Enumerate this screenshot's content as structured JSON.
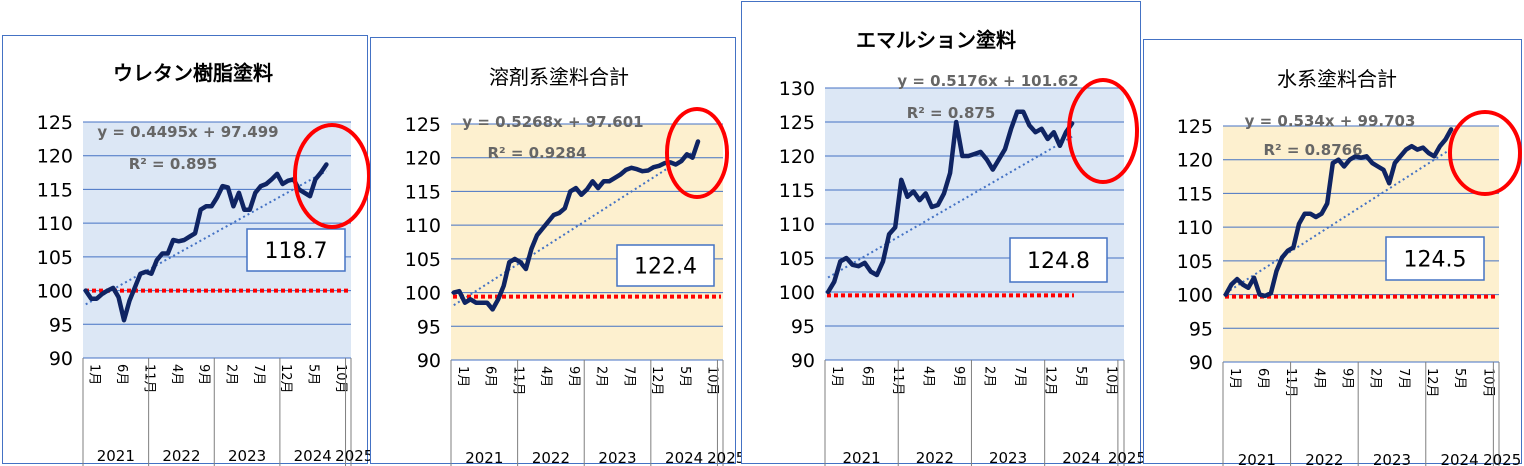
{
  "colors": {
    "line": "#0f2463",
    "trend": "#4472c4",
    "baseline": "#ff0000",
    "bg_blue": "#dce7f5",
    "bg_yellow": "#fdf0cf",
    "grid": "#4472c4",
    "circle": "#ff0000",
    "border": "#4472c4"
  },
  "chart_data": [
    {
      "type": "line",
      "title": "ウレタン樹脂塗料",
      "background": "blue",
      "ylim": [
        90,
        125
      ],
      "yticks": [
        "125",
        "120",
        "115",
        "110",
        "105",
        "100",
        "95",
        "90"
      ],
      "month_labels": [
        "1月",
        "6月",
        "11月",
        "4月",
        "9月",
        "2月",
        "7月",
        "12月",
        "5月",
        "10月"
      ],
      "year_labels": [
        "2021",
        "2022",
        "2023",
        "2024",
        "2025"
      ],
      "equation": "y = 0.4495x + 97.499",
      "r2": "R² = 0.895",
      "latest_value": "118.7",
      "baseline": 100,
      "trend": {
        "slope": 0.4495,
        "intercept": 97.499
      },
      "values": [
        100.0,
        98.8,
        98.8,
        99.5,
        100.0,
        100.4,
        99.0,
        95.6,
        98.5,
        100.5,
        102.5,
        102.8,
        102.5,
        104.5,
        105.5,
        105.5,
        107.5,
        107.3,
        107.5,
        108.0,
        108.5,
        112.0,
        112.5,
        112.5,
        113.8,
        115.5,
        115.3,
        112.5,
        114.5,
        112.0,
        112.0,
        114.5,
        115.5,
        115.8,
        116.5,
        117.3,
        115.8,
        116.3,
        116.5,
        115.0,
        114.5,
        114.0,
        116.5,
        117.5,
        118.7
      ]
    },
    {
      "type": "line",
      "title": "溶剤系塗料合計",
      "background": "yellow",
      "ylim": [
        90,
        125
      ],
      "yticks": [
        "125",
        "120",
        "115",
        "110",
        "105",
        "100",
        "95",
        "90"
      ],
      "month_labels": [
        "1月",
        "6月",
        "11月",
        "4月",
        "9月",
        "2月",
        "7月",
        "12月",
        "5月",
        "10月"
      ],
      "year_labels": [
        "2021",
        "2022",
        "2023",
        "2024",
        "2025"
      ],
      "equation": "y = 0.5268x + 97.601",
      "r2": "R² = 0.9284",
      "latest_value": "122.4",
      "baseline": 99.4,
      "trend": {
        "slope": 0.5268,
        "intercept": 97.601
      },
      "values": [
        100.0,
        100.2,
        98.5,
        99.0,
        98.5,
        98.5,
        98.5,
        97.5,
        99.0,
        101.0,
        104.5,
        105.0,
        104.5,
        103.5,
        106.5,
        108.5,
        109.5,
        110.5,
        111.5,
        111.8,
        112.5,
        115.0,
        115.5,
        114.5,
        115.3,
        116.5,
        115.5,
        116.5,
        116.5,
        117.0,
        117.5,
        118.2,
        118.5,
        118.3,
        118.0,
        118.1,
        118.6,
        118.8,
        119.2,
        119.3,
        119.0,
        119.5,
        120.5,
        120.0,
        122.4
      ]
    },
    {
      "type": "line",
      "title": "エマルション塗料",
      "background": "blue",
      "ylim": [
        90,
        130
      ],
      "yticks": [
        "130",
        "125",
        "120",
        "115",
        "110",
        "105",
        "100",
        "95",
        "90"
      ],
      "month_labels": [
        "1月",
        "6月",
        "11月",
        "4月",
        "9月",
        "2月",
        "7月",
        "12月",
        "5月",
        "10月"
      ],
      "year_labels": [
        "2021",
        "2022",
        "2023",
        "2024",
        "2025"
      ],
      "equation": "y = 0.5176x + 101.62",
      "r2": "R² = 0.875",
      "latest_value": "124.8",
      "baseline": 99.5,
      "trend": {
        "slope": 0.5176,
        "intercept": 101.62
      },
      "values": [
        100.0,
        101.5,
        104.5,
        105.0,
        104.0,
        103.8,
        104.3,
        103.0,
        102.5,
        104.5,
        108.5,
        109.5,
        116.5,
        114.0,
        114.8,
        113.5,
        114.5,
        112.5,
        112.8,
        114.5,
        117.5,
        125.0,
        120.0,
        120.0,
        120.3,
        120.6,
        119.5,
        118.0,
        119.5,
        121.0,
        124.0,
        126.5,
        126.5,
        124.5,
        123.5,
        124.0,
        122.5,
        123.5,
        121.5,
        123.5,
        124.8
      ]
    },
    {
      "type": "line",
      "title": "水系塗料合計",
      "background": "yellow",
      "ylim": [
        90,
        125
      ],
      "yticks": [
        "125",
        "120",
        "115",
        "110",
        "105",
        "100",
        "95",
        "90"
      ],
      "month_labels": [
        "1月",
        "6月",
        "11月",
        "4月",
        "9月",
        "2月",
        "7月",
        "12月",
        "5月",
        "10月"
      ],
      "year_labels": [
        "2021",
        "2022",
        "2023",
        "2024",
        "2025"
      ],
      "equation": "y = 0.534x + 99.703",
      "r2": "R² = 0.8766",
      "latest_value": "124.5",
      "baseline": 99.7,
      "trend": {
        "slope": 0.534,
        "intercept": 99.703
      },
      "values": [
        100.0,
        101.5,
        102.3,
        101.5,
        101.0,
        102.5,
        100.0,
        99.8,
        100.2,
        103.5,
        105.5,
        106.5,
        107.0,
        110.5,
        112.0,
        112.0,
        111.5,
        112.0,
        113.5,
        119.5,
        120.0,
        119.0,
        120.0,
        120.5,
        120.3,
        120.5,
        119.5,
        119.0,
        118.5,
        116.5,
        119.5,
        120.5,
        121.5,
        122.0,
        121.5,
        121.8,
        121.0,
        120.5,
        122.0,
        123.0,
        124.5
      ]
    }
  ]
}
